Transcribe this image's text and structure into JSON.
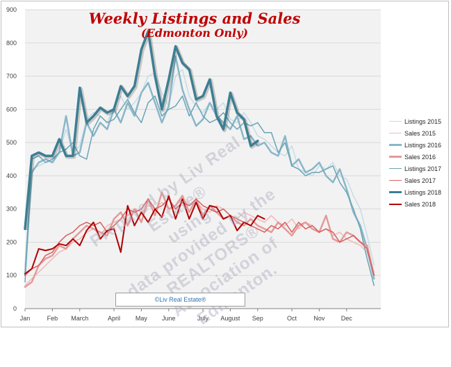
{
  "chart_data": {
    "type": "line",
    "title": "Weekly Listings and Sales",
    "subtitle": "(Edmonton Only)",
    "ylim": [
      0,
      900
    ],
    "yticks": [
      0,
      100,
      200,
      300,
      400,
      500,
      600,
      700,
      800,
      900
    ],
    "xlim": [
      1,
      53
    ],
    "month_ticks": [
      {
        "label": "Jan",
        "week": 1
      },
      {
        "label": "Feb",
        "week": 5
      },
      {
        "label": "March",
        "week": 9
      },
      {
        "label": "April",
        "week": 14
      },
      {
        "label": "May",
        "week": 18
      },
      {
        "label": "June",
        "week": 22
      },
      {
        "label": "July",
        "week": 27
      },
      {
        "label": "August",
        "week": 31
      },
      {
        "label": "Sep",
        "week": 35
      },
      {
        "label": "Oct",
        "week": 40
      },
      {
        "label": "Nov",
        "week": 44
      },
      {
        "label": "Dec",
        "week": 48
      }
    ],
    "grid": true,
    "legend_position": "right",
    "series": [
      {
        "name": "Listings 2015",
        "color": "#c6dbe6",
        "width": 1.5,
        "values": [
          130,
          420,
          430,
          440,
          445,
          470,
          540,
          470,
          490,
          570,
          590,
          580,
          560,
          610,
          640,
          600,
          620,
          650,
          700,
          710,
          650,
          610,
          700,
          720,
          640,
          610,
          590,
          620,
          600,
          620,
          570,
          560,
          590,
          560,
          520,
          510,
          490,
          470,
          460,
          490,
          420,
          410,
          400,
          430,
          420,
          440,
          400,
          390,
          340,
          300,
          220,
          130
        ]
      },
      {
        "name": "Sales 2015",
        "color": "#f2b8b8",
        "width": 1.5,
        "values": [
          70,
          90,
          110,
          130,
          150,
          170,
          180,
          200,
          210,
          230,
          240,
          220,
          250,
          260,
          270,
          280,
          300,
          290,
          310,
          300,
          320,
          300,
          310,
          330,
          310,
          320,
          300,
          290,
          310,
          300,
          280,
          270,
          290,
          280,
          270,
          260,
          280,
          260,
          250,
          270,
          240,
          260,
          250,
          230,
          240,
          220,
          230,
          210,
          200,
          190,
          170,
          110
        ]
      },
      {
        "name": "Listings 2016",
        "color": "#8ab6c8",
        "width": 2.5,
        "values": [
          100,
          410,
          440,
          450,
          440,
          470,
          580,
          460,
          470,
          560,
          520,
          560,
          540,
          600,
          560,
          620,
          580,
          650,
          680,
          620,
          560,
          610,
          760,
          660,
          600,
          550,
          570,
          620,
          580,
          560,
          540,
          580,
          510,
          520,
          490,
          500,
          470,
          460,
          520,
          430,
          450,
          410,
          420,
          440,
          400,
          380,
          420,
          360,
          290,
          250,
          180,
          90
        ]
      },
      {
        "name": "Sales 2016",
        "color": "#e49a9a",
        "width": 2.5,
        "values": [
          65,
          80,
          130,
          150,
          160,
          190,
          180,
          210,
          230,
          250,
          240,
          230,
          220,
          270,
          290,
          250,
          300,
          260,
          330,
          280,
          350,
          300,
          310,
          340,
          290,
          330,
          280,
          310,
          290,
          270,
          280,
          260,
          250,
          270,
          250,
          240,
          230,
          260,
          240,
          220,
          250,
          260,
          240,
          230,
          280,
          210,
          200,
          230,
          220,
          200,
          190,
          100
        ]
      },
      {
        "name": "Listings 2017",
        "color": "#6aa5b5",
        "width": 1.5,
        "values": [
          80,
          450,
          460,
          440,
          450,
          470,
          480,
          500,
          460,
          450,
          540,
          580,
          560,
          570,
          600,
          630,
          590,
          560,
          620,
          640,
          580,
          600,
          610,
          640,
          580,
          620,
          580,
          560,
          570,
          590,
          560,
          540,
          560,
          550,
          560,
          530,
          530,
          470,
          500,
          430,
          420,
          400,
          410,
          410,
          420,
          430,
          380,
          350,
          300,
          240,
          150,
          70
        ]
      },
      {
        "name": "Sales 2017",
        "color": "#d95f5f",
        "width": 1.5,
        "values": [
          100,
          120,
          130,
          160,
          170,
          200,
          220,
          230,
          250,
          260,
          250,
          260,
          230,
          250,
          270,
          300,
          290,
          300,
          330,
          300,
          310,
          330,
          300,
          320,
          310,
          330,
          310,
          300,
          290,
          300,
          280,
          270,
          260,
          250,
          240,
          230,
          250,
          240,
          260,
          230,
          260,
          240,
          250,
          230,
          240,
          230,
          200,
          210,
          220,
          200,
          180,
          100
        ]
      },
      {
        "name": "Listings 2018",
        "color": "#3d7e92",
        "width": 3.5,
        "values": [
          240,
          460,
          470,
          460,
          460,
          510,
          460,
          460,
          665,
          560,
          580,
          605,
          590,
          600,
          670,
          640,
          670,
          780,
          835,
          700,
          600,
          690,
          790,
          740,
          720,
          630,
          640,
          690,
          580,
          540,
          650,
          590,
          570,
          490,
          505
        ]
      },
      {
        "name": "Sales 2018",
        "color": "#b00000",
        "width": 2,
        "values": [
          105,
          120,
          180,
          175,
          180,
          195,
          190,
          210,
          190,
          235,
          260,
          210,
          235,
          240,
          170,
          310,
          250,
          290,
          260,
          300,
          275,
          340,
          270,
          330,
          270,
          320,
          270,
          310,
          305,
          270,
          280,
          235,
          260,
          250,
          280,
          270
        ]
      }
    ]
  },
  "watermark_lines": [
    "Prepared by Liv Real Estate®",
    "using",
    "data provided by the",
    "REALTORS®",
    "Association of Edmonton."
  ],
  "credit": "©Liv Real Estate®"
}
